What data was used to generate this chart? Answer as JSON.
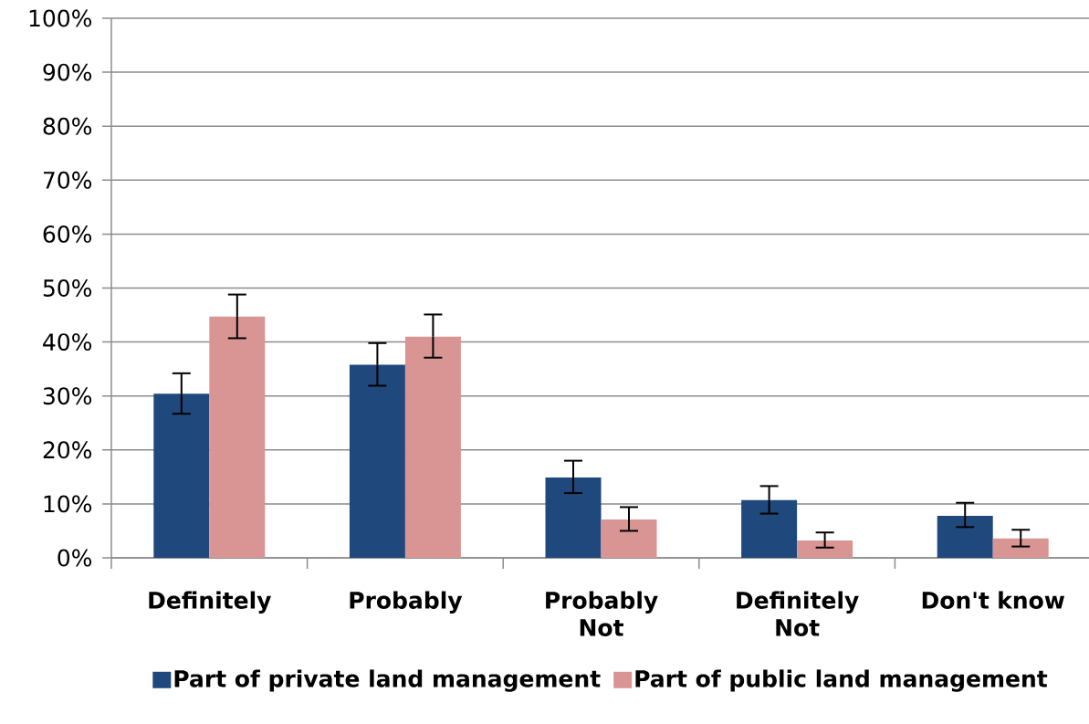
{
  "chart_data": {
    "type": "bar",
    "categories": [
      "Definitely",
      "Probably",
      "Probably Not",
      "Definitely Not",
      "Don't know"
    ],
    "series": [
      {
        "name": "Part of private land management",
        "color": "#1f497d",
        "values": [
          30.4,
          35.8,
          14.9,
          10.7,
          7.8
        ],
        "errors": [
          [
            26.7,
            34.2
          ],
          [
            31.9,
            39.8
          ],
          [
            12.0,
            18.0
          ],
          [
            8.2,
            13.3
          ],
          [
            5.7,
            10.2
          ]
        ]
      },
      {
        "name": "Part of public land management",
        "color": "#d99594",
        "values": [
          44.7,
          41.0,
          7.1,
          3.2,
          3.6
        ],
        "errors": [
          [
            40.7,
            48.8
          ],
          [
            37.1,
            45.1
          ],
          [
            5.0,
            9.4
          ],
          [
            1.9,
            4.7
          ],
          [
            2.1,
            5.2
          ]
        ]
      }
    ],
    "ylim": [
      0,
      100
    ],
    "yticks": [
      {
        "value": 0,
        "label": "0%"
      },
      {
        "value": 10,
        "label": "10%"
      },
      {
        "value": 20,
        "label": "20%"
      },
      {
        "value": 30,
        "label": "30%"
      },
      {
        "value": 40,
        "label": "40%"
      },
      {
        "value": 50,
        "label": "50%"
      },
      {
        "value": 60,
        "label": "60%"
      },
      {
        "value": 70,
        "label": "70%"
      },
      {
        "value": 80,
        "label": "80%"
      },
      {
        "value": 90,
        "label": "90%"
      },
      {
        "value": 100,
        "label": "100%"
      }
    ],
    "grid": "y",
    "legend": "bottom"
  }
}
